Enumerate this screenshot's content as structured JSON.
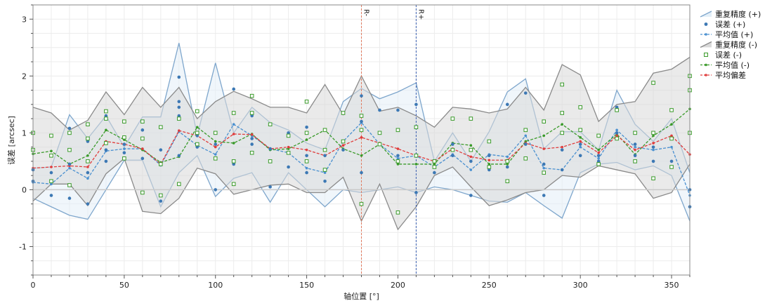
{
  "chart_data": {
    "type": "line",
    "xlabel": "轴位置 [°]",
    "ylabel": "误差 [arcsec]",
    "xlim": [
      0,
      360
    ],
    "ylim": [
      -1.5,
      3.25
    ],
    "x_ticks": [
      0,
      50,
      100,
      150,
      200,
      250,
      300,
      350
    ],
    "y_ticks": [
      -1,
      0,
      1,
      2,
      3
    ],
    "grid": true,
    "legend_position": "right",
    "reference_lines": [
      {
        "label": "R-",
        "x": 180,
        "color": "#e07a5f"
      },
      {
        "label": "R+",
        "x": 210,
        "color": "#3a5fb0"
      }
    ],
    "x": [
      0,
      10,
      20,
      30,
      40,
      50,
      60,
      70,
      80,
      90,
      100,
      110,
      120,
      130,
      140,
      150,
      160,
      170,
      180,
      190,
      200,
      210,
      220,
      230,
      240,
      250,
      260,
      270,
      280,
      290,
      300,
      310,
      320,
      330,
      340,
      350,
      360
    ],
    "series": [
      {
        "name": "重复精度 (+)",
        "kind": "band",
        "color": "#7ea6cc",
        "fill": "#e3eff8",
        "upper": [
          0.38,
          0.4,
          1.32,
          0.9,
          1.3,
          0.75,
          1.28,
          1.28,
          2.58,
          0.95,
          2.23,
          1.0,
          1.45,
          1.18,
          1.05,
          0.82,
          0.7,
          1.55,
          1.78,
          1.6,
          1.72,
          1.88,
          0.5,
          1.0,
          0.5,
          1.02,
          1.72,
          1.95,
          0.72,
          1.02,
          1.02,
          0.7,
          1.75,
          1.15,
          0.85,
          1.25,
          0.3
        ],
        "lower": [
          -0.15,
          -0.3,
          -0.45,
          -0.52,
          0.0,
          0.52,
          0.52,
          -0.3,
          0.3,
          0.6,
          -0.12,
          0.2,
          0.3,
          -0.22,
          0.3,
          0.0,
          -0.3,
          0.0,
          -0.05,
          0.0,
          0.05,
          -0.05,
          0.05,
          0.0,
          -0.1,
          -0.2,
          -0.22,
          -0.05,
          -0.28,
          -0.5,
          0.3,
          0.45,
          0.48,
          0.35,
          0.42,
          0.25,
          -0.55
        ]
      },
      {
        "name": "误差 (+)",
        "kind": "points",
        "color": "#3c78b4",
        "points": [
          [
            0,
            0.35
          ],
          [
            0,
            0.15
          ],
          [
            10,
            0.3
          ],
          [
            10,
            -0.1
          ],
          [
            20,
            1.08
          ],
          [
            20,
            0.45
          ],
          [
            20,
            -0.15
          ],
          [
            30,
            0.85
          ],
          [
            30,
            0.3
          ],
          [
            30,
            -0.25
          ],
          [
            40,
            1.3
          ],
          [
            40,
            0.7
          ],
          [
            40,
            0.5
          ],
          [
            50,
            0.8
          ],
          [
            50,
            0.65
          ],
          [
            60,
            1.05
          ],
          [
            60,
            0.55
          ],
          [
            70,
            0.7
          ],
          [
            70,
            -0.2
          ],
          [
            80,
            1.98
          ],
          [
            80,
            1.55
          ],
          [
            80,
            1.45
          ],
          [
            80,
            1.3
          ],
          [
            80,
            0.6
          ],
          [
            90,
            0.95
          ],
          [
            90,
            0.75
          ],
          [
            100,
            0.8
          ],
          [
            100,
            0.0
          ],
          [
            110,
            1.77
          ],
          [
            110,
            0.45
          ],
          [
            120,
            1.3
          ],
          [
            120,
            0.9
          ],
          [
            120,
            0.8
          ],
          [
            130,
            0.72
          ],
          [
            130,
            0.05
          ],
          [
            140,
            1.0
          ],
          [
            140,
            0.4
          ],
          [
            150,
            1.1
          ],
          [
            150,
            0.6
          ],
          [
            150,
            0.3
          ],
          [
            160,
            0.6
          ],
          [
            160,
            0.15
          ],
          [
            170,
            1.35
          ],
          [
            170,
            0.7
          ],
          [
            180,
            1.65
          ],
          [
            180,
            1.2
          ],
          [
            180,
            0.3
          ],
          [
            190,
            1.4
          ],
          [
            190,
            0.8
          ],
          [
            200,
            1.4
          ],
          [
            200,
            0.6
          ],
          [
            210,
            1.5
          ],
          [
            210,
            -0.05
          ],
          [
            220,
            0.5
          ],
          [
            220,
            0.3
          ],
          [
            230,
            0.8
          ],
          [
            230,
            0.6
          ],
          [
            240,
            0.5
          ],
          [
            240,
            -0.1
          ],
          [
            250,
            0.6
          ],
          [
            250,
            0.35
          ],
          [
            260,
            1.5
          ],
          [
            260,
            0.4
          ],
          [
            270,
            1.7
          ],
          [
            270,
            0.8
          ],
          [
            280,
            0.45
          ],
          [
            280,
            -0.1
          ],
          [
            290,
            0.7
          ],
          [
            290,
            0.35
          ],
          [
            300,
            0.8
          ],
          [
            300,
            0.6
          ],
          [
            310,
            0.6
          ],
          [
            310,
            0.5
          ],
          [
            320,
            1.45
          ],
          [
            320,
            1.0
          ],
          [
            330,
            0.8
          ],
          [
            330,
            0.6
          ],
          [
            340,
            0.75
          ],
          [
            340,
            0.5
          ],
          [
            350,
            0.9
          ],
          [
            350,
            0.5
          ],
          [
            360,
            0.0
          ],
          [
            360,
            -0.3
          ]
        ]
      },
      {
        "name": "平均值 (+)",
        "kind": "line",
        "color": "#4a90d0",
        "values": [
          0.13,
          0.1,
          0.38,
          0.2,
          0.68,
          0.72,
          0.72,
          0.43,
          1.02,
          0.78,
          0.62,
          1.15,
          0.95,
          0.72,
          0.65,
          0.38,
          0.3,
          0.85,
          1.18,
          0.8,
          0.55,
          0.6,
          0.4,
          0.62,
          0.35,
          0.62,
          0.58,
          0.95,
          0.38,
          0.35,
          0.75,
          0.55,
          1.05,
          0.75,
          0.7,
          0.75,
          -0.1
        ]
      },
      {
        "name": "重复精度 (-)",
        "kind": "band",
        "color": "#8a8a8a",
        "fill": "#d9d9d9",
        "upper": [
          1.45,
          1.35,
          1.05,
          1.22,
          1.72,
          1.32,
          1.8,
          1.45,
          1.8,
          1.25,
          1.55,
          1.73,
          1.6,
          1.45,
          1.45,
          1.35,
          1.85,
          1.32,
          2.0,
          1.38,
          1.45,
          1.3,
          1.1,
          1.45,
          1.42,
          1.35,
          1.42,
          1.8,
          1.4,
          2.2,
          2.02,
          1.2,
          1.5,
          1.55,
          2.05,
          2.12,
          2.33
        ],
        "lower": [
          -0.2,
          0.1,
          0.1,
          -0.28,
          0.28,
          0.55,
          -0.38,
          -0.42,
          -0.15,
          0.38,
          0.28,
          -0.08,
          0.0,
          0.08,
          0.1,
          -0.05,
          -0.05,
          0.22,
          -0.55,
          0.1,
          -0.7,
          -0.3,
          0.25,
          0.4,
          0.05,
          -0.28,
          -0.18,
          -0.05,
          0.0,
          0.25,
          0.22,
          0.42,
          0.35,
          0.28,
          -0.15,
          -0.05,
          0.45
        ]
      },
      {
        "name": "误差 (-)",
        "kind": "points",
        "color": "#3a9a2a",
        "points": [
          [
            0,
            1.0
          ],
          [
            0,
            0.7
          ],
          [
            10,
            0.95
          ],
          [
            10,
            0.6
          ],
          [
            10,
            0.15
          ],
          [
            20,
            1.0
          ],
          [
            20,
            0.7
          ],
          [
            20,
            0.08
          ],
          [
            30,
            1.15
          ],
          [
            30,
            0.9
          ],
          [
            30,
            0.5
          ],
          [
            40,
            1.38
          ],
          [
            40,
            1.25
          ],
          [
            40,
            0.82
          ],
          [
            50,
            1.2
          ],
          [
            50,
            0.92
          ],
          [
            50,
            0.55
          ],
          [
            60,
            1.2
          ],
          [
            60,
            0.9
          ],
          [
            60,
            -0.05
          ],
          [
            70,
            1.1
          ],
          [
            70,
            0.45
          ],
          [
            70,
            -0.1
          ],
          [
            80,
            1.25
          ],
          [
            80,
            0.1
          ],
          [
            90,
            1.38
          ],
          [
            90,
            1.0
          ],
          [
            90,
            0.8
          ],
          [
            100,
            1.0
          ],
          [
            100,
            0.55
          ],
          [
            110,
            1.35
          ],
          [
            110,
            0.5
          ],
          [
            110,
            0.1
          ],
          [
            120,
            1.65
          ],
          [
            120,
            1.35
          ],
          [
            120,
            0.65
          ],
          [
            130,
            1.15
          ],
          [
            130,
            0.5
          ],
          [
            140,
            0.95
          ],
          [
            140,
            0.65
          ],
          [
            150,
            1.55
          ],
          [
            150,
            1.0
          ],
          [
            150,
            0.5
          ],
          [
            160,
            1.05
          ],
          [
            160,
            0.7
          ],
          [
            160,
            0.35
          ],
          [
            170,
            1.35
          ],
          [
            170,
            0.85
          ],
          [
            180,
            1.3
          ],
          [
            180,
            1.05
          ],
          [
            180,
            -0.25
          ],
          [
            190,
            1.0
          ],
          [
            190,
            0.8
          ],
          [
            200,
            1.05
          ],
          [
            200,
            0.5
          ],
          [
            200,
            -0.4
          ],
          [
            210,
            1.1
          ],
          [
            210,
            0.6
          ],
          [
            220,
            0.5
          ],
          [
            220,
            0.4
          ],
          [
            230,
            1.25
          ],
          [
            230,
            0.7
          ],
          [
            240,
            1.25
          ],
          [
            240,
            0.7
          ],
          [
            250,
            0.85
          ],
          [
            250,
            0.4
          ],
          [
            260,
            0.5
          ],
          [
            260,
            0.15
          ],
          [
            270,
            1.05
          ],
          [
            270,
            0.55
          ],
          [
            280,
            1.2
          ],
          [
            280,
            0.3
          ],
          [
            290,
            1.85
          ],
          [
            290,
            1.35
          ],
          [
            290,
            1.0
          ],
          [
            300,
            1.45
          ],
          [
            300,
            1.05
          ],
          [
            310,
            0.95
          ],
          [
            310,
            0.45
          ],
          [
            320,
            1.4
          ],
          [
            320,
            0.9
          ],
          [
            330,
            1.0
          ],
          [
            330,
            0.5
          ],
          [
            340,
            1.88
          ],
          [
            340,
            1.0
          ],
          [
            340,
            0.2
          ],
          [
            350,
            1.4
          ],
          [
            350,
            0.9
          ],
          [
            350,
            0.4
          ],
          [
            360,
            2.0
          ],
          [
            360,
            1.75
          ],
          [
            360,
            1.0
          ]
        ]
      },
      {
        "name": "平均值 (-)",
        "kind": "line",
        "color": "#3a9a2a",
        "values": [
          0.63,
          0.68,
          0.45,
          0.6,
          1.05,
          0.88,
          0.7,
          0.48,
          0.58,
          1.1,
          0.85,
          0.82,
          0.98,
          0.7,
          0.72,
          0.88,
          1.05,
          0.72,
          0.6,
          0.8,
          0.45,
          0.45,
          0.45,
          0.82,
          0.78,
          0.45,
          0.45,
          0.85,
          0.95,
          1.15,
          0.92,
          0.7,
          0.98,
          0.62,
          0.95,
          1.15,
          1.42
        ]
      },
      {
        "name": "平均偏差",
        "kind": "line",
        "color": "#e03c3c",
        "values": [
          0.38,
          0.4,
          0.42,
          0.4,
          0.85,
          0.8,
          0.72,
          0.45,
          1.04,
          0.95,
          0.75,
          0.98,
          0.97,
          0.72,
          0.75,
          0.7,
          0.6,
          0.78,
          0.92,
          0.82,
          0.72,
          0.6,
          0.5,
          0.72,
          0.58,
          0.52,
          0.52,
          0.82,
          0.72,
          0.75,
          0.85,
          0.65,
          0.95,
          0.7,
          0.82,
          0.95,
          0.62
        ]
      }
    ]
  }
}
